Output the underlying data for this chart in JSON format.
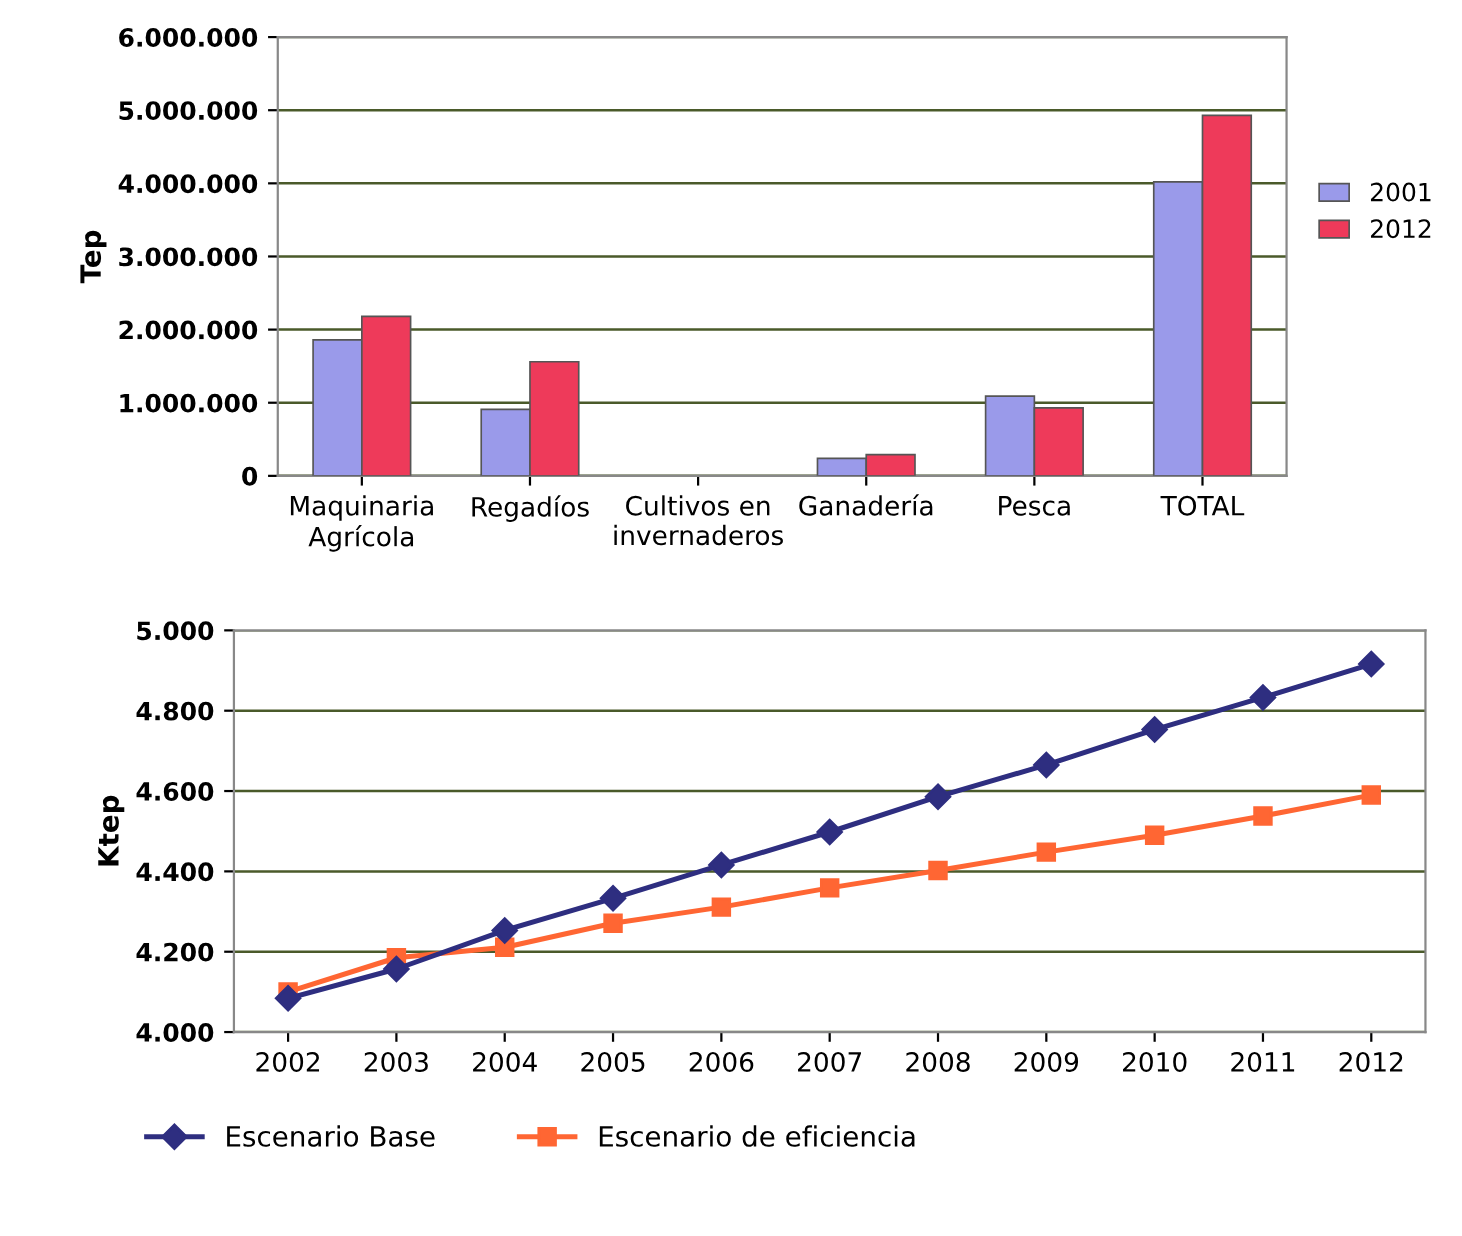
{
  "chart_data": [
    {
      "type": "bar",
      "ylabel": "Tep",
      "categories": [
        "Maquinaria\nAgrícola",
        "Regadíos",
        "Cultivos en\ninvernaderos",
        "Ganadería",
        "Pesca",
        "TOTAL"
      ],
      "series": [
        {
          "name": "2001",
          "color": "#9a9aea",
          "values": [
            1860000,
            910000,
            null,
            240000,
            1090000,
            4020000
          ]
        },
        {
          "name": "2012",
          "color": "#ee3a5a",
          "values": [
            2180000,
            1560000,
            null,
            290000,
            930000,
            4930000
          ]
        }
      ],
      "ylim": [
        0,
        6000000
      ],
      "yticks": [
        {
          "value": 0,
          "label": "0"
        },
        {
          "value": 1000000,
          "label": "1.000.000"
        },
        {
          "value": 2000000,
          "label": "2.000.000"
        },
        {
          "value": 3000000,
          "label": "3.000.000"
        },
        {
          "value": 4000000,
          "label": "4.000.000"
        },
        {
          "value": 5000000,
          "label": "5.000.000"
        },
        {
          "value": 6000000,
          "label": "6.000.000"
        }
      ],
      "grid": "y",
      "legend": "right"
    },
    {
      "type": "line",
      "ylabel": "Ktep",
      "categories": [
        "2002",
        "2003",
        "2004",
        "2005",
        "2006",
        "2007",
        "2008",
        "2009",
        "2010",
        "2011",
        "2012"
      ],
      "series": [
        {
          "name": "Escenario Base",
          "color": "#2e2e80",
          "marker": "diamond",
          "values": [
            4084,
            4157,
            4253,
            4333,
            4416,
            4498,
            4586,
            4665,
            4753,
            4833,
            4916
          ]
        },
        {
          "name": "Escenario de eficiencia",
          "color": "#ff6633",
          "marker": "square",
          "values": [
            4100,
            4185,
            4211,
            4271,
            4311,
            4359,
            4402,
            4448,
            4490,
            4538,
            4590
          ]
        }
      ],
      "ylim": [
        4000,
        5000
      ],
      "yticks": [
        {
          "value": 4000,
          "label": "4.000"
        },
        {
          "value": 4200,
          "label": "4.200"
        },
        {
          "value": 4400,
          "label": "4.400"
        },
        {
          "value": 4600,
          "label": "4.600"
        },
        {
          "value": 4800,
          "label": "4.800"
        },
        {
          "value": 5000,
          "label": "5.000"
        }
      ],
      "grid": "y",
      "legend": "bottom"
    }
  ]
}
